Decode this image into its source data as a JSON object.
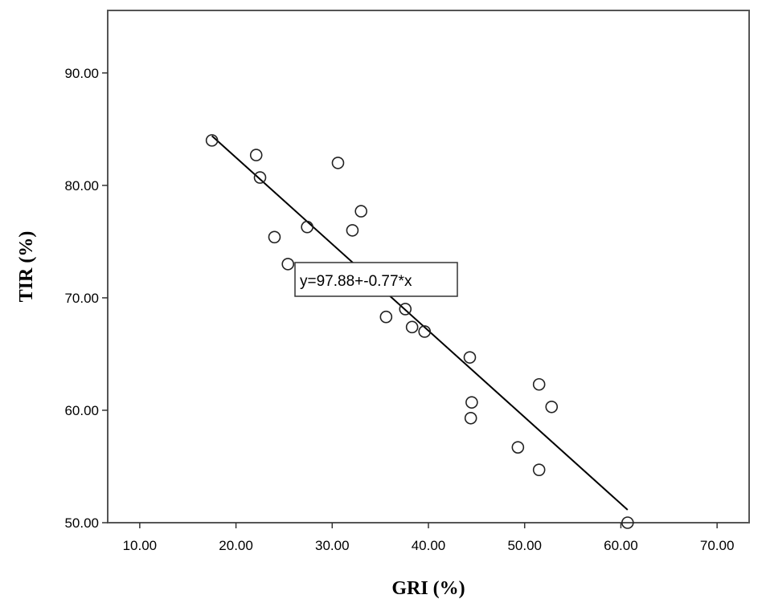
{
  "chart_data": {
    "type": "scatter",
    "xlabel": "GRI (%)",
    "ylabel": "TIR (%)",
    "xlim": [
      6.67,
      73.33
    ],
    "ylim": [
      50,
      95.56
    ],
    "xticks": [
      "10.00",
      "20.00",
      "30.00",
      "40.00",
      "50.00",
      "60.00",
      "70.00"
    ],
    "yticks": [
      "50.00",
      "60.00",
      "70.00",
      "80.00",
      "90.00"
    ],
    "grid": false,
    "points": [
      {
        "x": 17.5,
        "y": 84.0
      },
      {
        "x": 22.1,
        "y": 82.7
      },
      {
        "x": 22.5,
        "y": 80.7
      },
      {
        "x": 24.0,
        "y": 75.4
      },
      {
        "x": 25.4,
        "y": 73.0
      },
      {
        "x": 27.4,
        "y": 76.3
      },
      {
        "x": 30.6,
        "y": 82.0
      },
      {
        "x": 32.1,
        "y": 76.0
      },
      {
        "x": 33.0,
        "y": 77.7
      },
      {
        "x": 35.6,
        "y": 68.3
      },
      {
        "x": 37.6,
        "y": 69.0
      },
      {
        "x": 38.3,
        "y": 67.4
      },
      {
        "x": 39.6,
        "y": 67.0
      },
      {
        "x": 44.3,
        "y": 64.7
      },
      {
        "x": 44.5,
        "y": 60.7
      },
      {
        "x": 44.4,
        "y": 59.3
      },
      {
        "x": 49.3,
        "y": 56.7
      },
      {
        "x": 51.5,
        "y": 62.3
      },
      {
        "x": 52.8,
        "y": 60.3
      },
      {
        "x": 51.5,
        "y": 54.7
      },
      {
        "x": 60.7,
        "y": 50.0
      }
    ],
    "fit_line": {
      "intercept": 97.88,
      "slope": -0.77,
      "x_range": [
        17.5,
        60.7
      ],
      "label": "y=97.88+-0.77*x"
    }
  }
}
